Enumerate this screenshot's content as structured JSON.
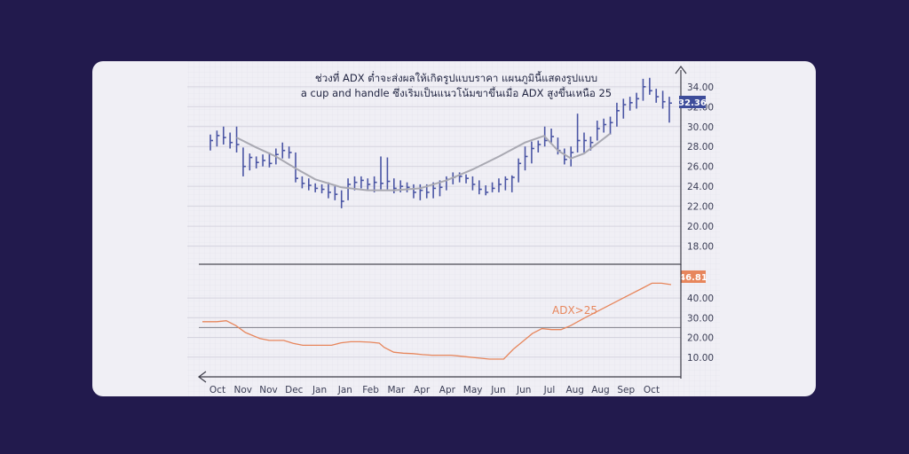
{
  "chart_data": [
    {
      "type": "ohlc",
      "panel": "price",
      "title_lines": [
        "ช่วงที่ ADX ต่ำจะส่งผลให้เกิดรูปแบบราคา แผนภูมินี้แสดงรูปแบบ",
        "a cup and handle ซึ่งเริ่มเป็นแนวโน้มขาขึ้นเมื่อ ADX สูงขึ้นเหนือ 25"
      ],
      "y_ticks": [
        "34.00",
        "32.00",
        "30.00",
        "28.00",
        "26.00",
        "24.00",
        "22.00",
        "20.00",
        "18.00"
      ],
      "ylim": [
        16.8,
        35.5
      ],
      "last_value_label": "32.36",
      "bars": [
        {
          "x": 0,
          "h": 29.2,
          "l": 27.6,
          "c": 28.6
        },
        {
          "x": 1,
          "h": 29.6,
          "l": 28.0,
          "c": 29.1
        },
        {
          "x": 2,
          "h": 30.0,
          "l": 28.2,
          "c": 28.9
        },
        {
          "x": 3,
          "h": 29.4,
          "l": 27.8,
          "c": 28.4
        },
        {
          "x": 4,
          "h": 30.0,
          "l": 27.4,
          "c": 28.2
        },
        {
          "x": 5,
          "h": 27.9,
          "l": 25.0,
          "c": 26.0
        },
        {
          "x": 6,
          "h": 27.3,
          "l": 25.6,
          "c": 26.9
        },
        {
          "x": 7,
          "h": 27.0,
          "l": 25.8,
          "c": 26.4
        },
        {
          "x": 8,
          "h": 27.2,
          "l": 26.0,
          "c": 26.6
        },
        {
          "x": 9,
          "h": 27.4,
          "l": 25.9,
          "c": 26.3
        },
        {
          "x": 10,
          "h": 27.8,
          "l": 26.2,
          "c": 27.2
        },
        {
          "x": 11,
          "h": 28.4,
          "l": 26.8,
          "c": 27.6
        },
        {
          "x": 12,
          "h": 28.0,
          "l": 26.8,
          "c": 27.4
        },
        {
          "x": 13,
          "h": 27.4,
          "l": 24.4,
          "c": 24.8
        },
        {
          "x": 14,
          "h": 25.0,
          "l": 23.8,
          "c": 24.3
        },
        {
          "x": 15,
          "h": 24.8,
          "l": 23.6,
          "c": 24.1
        },
        {
          "x": 16,
          "h": 24.3,
          "l": 23.4,
          "c": 23.8
        },
        {
          "x": 17,
          "h": 24.2,
          "l": 23.3,
          "c": 23.7
        },
        {
          "x": 18,
          "h": 24.4,
          "l": 22.8,
          "c": 23.4
        },
        {
          "x": 19,
          "h": 24.0,
          "l": 22.6,
          "c": 23.2
        },
        {
          "x": 20,
          "h": 23.6,
          "l": 21.8,
          "c": 22.5
        },
        {
          "x": 21,
          "h": 24.8,
          "l": 22.6,
          "c": 24.2
        },
        {
          "x": 22,
          "h": 25.0,
          "l": 23.6,
          "c": 24.4
        },
        {
          "x": 23,
          "h": 25.0,
          "l": 23.8,
          "c": 24.6
        },
        {
          "x": 24,
          "h": 24.8,
          "l": 23.7,
          "c": 24.2
        },
        {
          "x": 25,
          "h": 25.0,
          "l": 23.4,
          "c": 24.4
        },
        {
          "x": 26,
          "h": 27.0,
          "l": 23.7,
          "c": 24.3
        },
        {
          "x": 27,
          "h": 26.9,
          "l": 23.7,
          "c": 24.5
        },
        {
          "x": 28,
          "h": 24.8,
          "l": 23.3,
          "c": 23.8
        },
        {
          "x": 29,
          "h": 24.6,
          "l": 23.4,
          "c": 24.0
        },
        {
          "x": 30,
          "h": 24.4,
          "l": 23.4,
          "c": 23.9
        },
        {
          "x": 31,
          "h": 24.2,
          "l": 22.8,
          "c": 23.4
        },
        {
          "x": 32,
          "h": 24.2,
          "l": 22.6,
          "c": 23.6
        },
        {
          "x": 33,
          "h": 24.2,
          "l": 22.8,
          "c": 23.4
        },
        {
          "x": 34,
          "h": 24.4,
          "l": 22.8,
          "c": 23.8
        },
        {
          "x": 35,
          "h": 24.6,
          "l": 23.0,
          "c": 23.9
        },
        {
          "x": 36,
          "h": 25.0,
          "l": 23.6,
          "c": 24.7
        },
        {
          "x": 37,
          "h": 25.4,
          "l": 24.2,
          "c": 24.9
        },
        {
          "x": 38,
          "h": 25.4,
          "l": 24.4,
          "c": 25.0
        },
        {
          "x": 39,
          "h": 25.2,
          "l": 24.3,
          "c": 24.8
        },
        {
          "x": 40,
          "h": 25.0,
          "l": 23.6,
          "c": 24.2
        },
        {
          "x": 41,
          "h": 24.6,
          "l": 23.2,
          "c": 23.7
        },
        {
          "x": 42,
          "h": 24.1,
          "l": 23.1,
          "c": 23.4
        },
        {
          "x": 43,
          "h": 24.4,
          "l": 23.4,
          "c": 23.8
        },
        {
          "x": 44,
          "h": 24.8,
          "l": 23.4,
          "c": 24.2
        },
        {
          "x": 45,
          "h": 25.0,
          "l": 23.6,
          "c": 24.7
        },
        {
          "x": 46,
          "h": 25.1,
          "l": 23.4,
          "c": 24.9
        },
        {
          "x": 47,
          "h": 26.8,
          "l": 24.4,
          "c": 26.3
        },
        {
          "x": 48,
          "h": 28.0,
          "l": 25.6,
          "c": 27.0
        },
        {
          "x": 49,
          "h": 28.5,
          "l": 26.3,
          "c": 27.8
        },
        {
          "x": 50,
          "h": 28.6,
          "l": 27.4,
          "c": 28.2
        },
        {
          "x": 51,
          "h": 30.0,
          "l": 28.0,
          "c": 28.6
        },
        {
          "x": 52,
          "h": 29.8,
          "l": 28.4,
          "c": 29.0
        },
        {
          "x": 53,
          "h": 28.9,
          "l": 27.2,
          "c": 27.6
        },
        {
          "x": 54,
          "h": 27.8,
          "l": 26.2,
          "c": 26.7
        },
        {
          "x": 55,
          "h": 28.0,
          "l": 26.0,
          "c": 27.4
        },
        {
          "x": 56,
          "h": 31.3,
          "l": 27.4,
          "c": 28.6
        },
        {
          "x": 57,
          "h": 29.4,
          "l": 27.4,
          "c": 28.6
        },
        {
          "x": 58,
          "h": 29.0,
          "l": 27.6,
          "c": 28.4
        },
        {
          "x": 59,
          "h": 30.6,
          "l": 28.6,
          "c": 29.8
        },
        {
          "x": 60,
          "h": 30.8,
          "l": 29.4,
          "c": 30.2
        },
        {
          "x": 61,
          "h": 31.0,
          "l": 29.2,
          "c": 30.4
        },
        {
          "x": 62,
          "h": 32.4,
          "l": 30.0,
          "c": 31.6
        },
        {
          "x": 63,
          "h": 32.8,
          "l": 30.8,
          "c": 32.2
        },
        {
          "x": 64,
          "h": 33.0,
          "l": 31.6,
          "c": 32.4
        },
        {
          "x": 65,
          "h": 33.4,
          "l": 31.8,
          "c": 32.8
        },
        {
          "x": 66,
          "h": 34.8,
          "l": 32.6,
          "c": 34.0
        },
        {
          "x": 67,
          "h": 34.9,
          "l": 33.2,
          "c": 33.6
        },
        {
          "x": 68,
          "h": 33.8,
          "l": 32.4,
          "c": 33.0
        },
        {
          "x": 69,
          "h": 33.6,
          "l": 31.8,
          "c": 32.5
        },
        {
          "x": 70,
          "h": 33.0,
          "l": 30.4,
          "c": 32.36
        }
      ],
      "cup_curve": [
        [
          4,
          28.9
        ],
        [
          7,
          27.9
        ],
        [
          10,
          27.0
        ],
        [
          13,
          25.8
        ],
        [
          16,
          24.7
        ],
        [
          20,
          23.9
        ],
        [
          24,
          23.6
        ],
        [
          28,
          23.6
        ],
        [
          32,
          23.8
        ],
        [
          36,
          24.6
        ],
        [
          40,
          25.7
        ],
        [
          44,
          27.0
        ],
        [
          48,
          28.4
        ],
        [
          51,
          29.1
        ]
      ],
      "handle_curve": [
        [
          51,
          29.0
        ],
        [
          53,
          27.6
        ],
        [
          55,
          26.8
        ],
        [
          57,
          27.3
        ],
        [
          59,
          28.3
        ],
        [
          61,
          29.3
        ]
      ]
    },
    {
      "type": "line",
      "panel": "adx",
      "y_ticks": [
        "40.00",
        "30.00",
        "20.00",
        "10.00"
      ],
      "ylim": [
        0,
        54
      ],
      "threshold": 25,
      "last_value_label": "46.81",
      "annotation": "ADX>25",
      "points": [
        [
          0,
          28
        ],
        [
          3,
          28
        ],
        [
          5,
          28.5
        ],
        [
          7,
          26
        ],
        [
          9,
          22.5
        ],
        [
          12,
          19.5
        ],
        [
          14,
          18.5
        ],
        [
          17,
          18.5
        ],
        [
          19,
          17
        ],
        [
          21,
          16
        ],
        [
          23,
          16
        ],
        [
          25,
          16
        ],
        [
          27,
          16
        ],
        [
          29,
          17.3
        ],
        [
          31,
          17.8
        ],
        [
          33,
          17.8
        ],
        [
          35,
          17.6
        ],
        [
          37,
          17.1
        ],
        [
          38,
          15
        ],
        [
          40,
          12.5
        ],
        [
          42,
          12
        ],
        [
          44,
          11.8
        ],
        [
          46,
          11.3
        ],
        [
          48,
          11
        ],
        [
          50,
          11
        ],
        [
          52,
          11
        ],
        [
          54,
          10.5
        ],
        [
          56,
          10
        ],
        [
          58,
          9.5
        ],
        [
          60,
          9
        ],
        [
          63,
          9
        ],
        [
          65,
          14
        ],
        [
          67,
          18
        ],
        [
          69,
          22
        ],
        [
          71,
          24.5
        ],
        [
          73,
          24
        ],
        [
          75,
          24
        ],
        [
          77,
          26
        ],
        [
          80,
          30
        ],
        [
          84,
          35
        ],
        [
          88,
          40
        ],
        [
          92,
          45
        ],
        [
          94,
          47.5
        ],
        [
          96,
          47.5
        ],
        [
          98,
          46.81
        ]
      ]
    }
  ],
  "x_months": [
    "Oct",
    "Nov",
    "Nov",
    "Dec",
    "Jan",
    "Jan",
    "Feb",
    "Mar",
    "Apr",
    "Apr",
    "May",
    "Jun",
    "Jun",
    "Jul",
    "Aug",
    "Aug",
    "Sep",
    "Oct"
  ]
}
